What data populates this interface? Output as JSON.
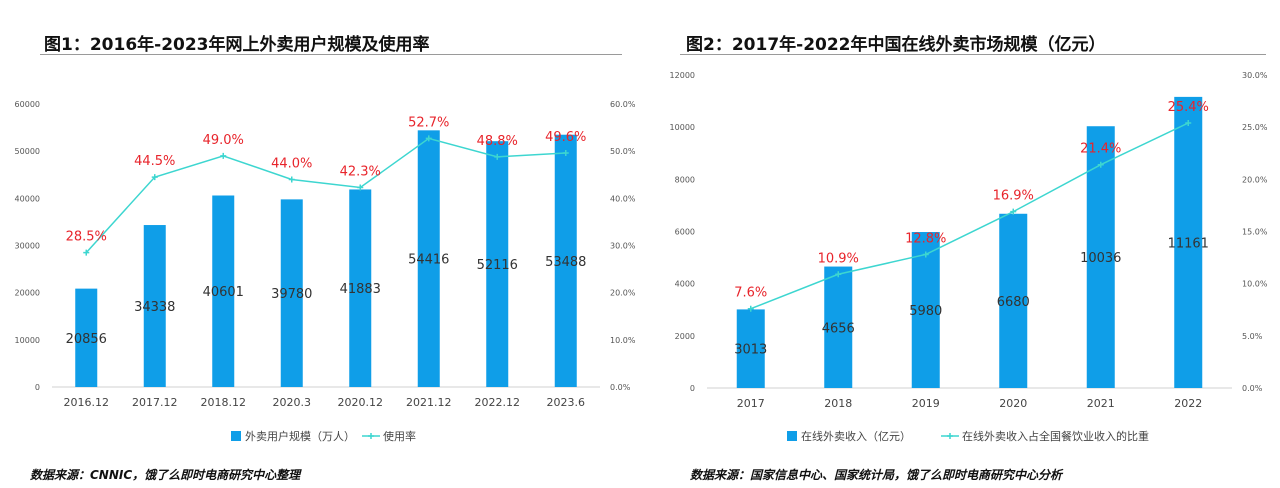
{
  "colors": {
    "bar": "#0f9ee8",
    "line": "#3dd6d0",
    "pct_label": "#e8242b",
    "value_label": "#333333",
    "axis_text": "#555555"
  },
  "chart_data": [
    {
      "type": "bar",
      "title": "图1：2016年-2023年网上外卖用户规模及使用率",
      "source": "数据来源：CNNIC，饿了么即时电商研究中心整理",
      "categories": [
        "2016.12",
        "2017.12",
        "2018.12",
        "2020.3",
        "2020.12",
        "2021.12",
        "2022.12",
        "2023.6"
      ],
      "series": [
        {
          "name": "外卖用户规模（万人）",
          "type": "bar",
          "axis": "left",
          "values": [
            20856,
            34338,
            40601,
            39780,
            41883,
            54416,
            52116,
            53488
          ],
          "labels": [
            "20856",
            "34338",
            "40601",
            "39780",
            "41883",
            "54416",
            "52116",
            "53488"
          ]
        },
        {
          "name": "使用率",
          "type": "line",
          "axis": "right",
          "values": [
            28.5,
            44.5,
            49.0,
            44.0,
            42.3,
            52.7,
            48.8,
            49.6
          ],
          "labels": [
            "28.5%",
            "44.5%",
            "49.0%",
            "44.0%",
            "42.3%",
            "52.7%",
            "48.8%",
            "49.6%"
          ]
        }
      ],
      "ylim": [
        0,
        60000
      ],
      "yticks": [
        "0",
        "10000",
        "20000",
        "30000",
        "40000",
        "50000",
        "60000"
      ],
      "y2lim": [
        0,
        60
      ],
      "y2ticks": [
        "0.0%",
        "10.0%",
        "20.0%",
        "30.0%",
        "40.0%",
        "50.0%",
        "60.0%"
      ],
      "grid": false,
      "legend": "bottom"
    },
    {
      "type": "bar",
      "title": "图2：2017年-2022年中国在线外卖市场规模（亿元）",
      "source": "数据来源：国家信息中心、国家统计局，饿了么即时电商研究中心分析",
      "categories": [
        "2017",
        "2018",
        "2019",
        "2020",
        "2021",
        "2022"
      ],
      "series": [
        {
          "name": "在线外卖收入（亿元）",
          "type": "bar",
          "axis": "left",
          "values": [
            3013,
            4656,
            5980,
            6680,
            10036,
            11161
          ],
          "labels": [
            "3013",
            "4656",
            "5980",
            "6680",
            "10036",
            "11161"
          ]
        },
        {
          "name": "在线外卖收入占全国餐饮业收入的比重",
          "type": "line",
          "axis": "right",
          "values": [
            7.6,
            10.9,
            12.8,
            16.9,
            21.4,
            25.4
          ],
          "labels": [
            "7.6%",
            "10.9%",
            "12.8%",
            "16.9%",
            "21.4%",
            "25.4%"
          ]
        }
      ],
      "ylim": [
        0,
        12000
      ],
      "yticks": [
        "0",
        "2000",
        "4000",
        "6000",
        "8000",
        "10000",
        "12000"
      ],
      "y2lim": [
        0,
        30
      ],
      "y2ticks": [
        "0.0%",
        "5.0%",
        "10.0%",
        "15.0%",
        "20.0%",
        "25.0%",
        "30.0%"
      ],
      "grid": false,
      "legend": "bottom"
    }
  ]
}
